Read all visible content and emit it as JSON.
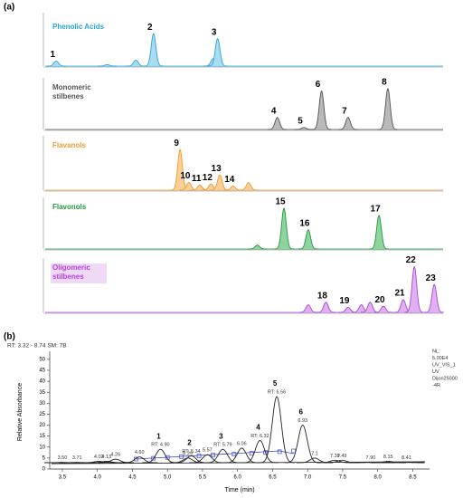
{
  "panel_a_label": "(a)",
  "panel_b_label": "(b)",
  "chart_data": [
    {
      "type": "chromatogram",
      "title": "Phenolic Acids",
      "color": "#29a3dc",
      "fill": "#a9dcf3",
      "xlim": [
        2,
        20
      ],
      "ylim": [
        0,
        100
      ],
      "peak_x": [
        2.5,
        4.8,
        6.1,
        6.9,
        9.6,
        9.8
      ],
      "peak_heights": [
        10,
        3,
        12,
        65,
        15,
        55
      ],
      "peak_labels": [
        "1",
        null,
        null,
        "2",
        null,
        "3"
      ]
    },
    {
      "type": "chromatogram",
      "title": "Monomeric stilbenes",
      "color": "#555555",
      "fill": "#b9b9b9",
      "xlim": [
        2,
        20
      ],
      "ylim": [
        0,
        100
      ],
      "peak_x": [
        12.5,
        13.7,
        14.5,
        15.7,
        17.5
      ],
      "peak_heights": [
        25,
        4,
        80,
        25,
        85
      ],
      "peak_labels": [
        "4",
        "5",
        "6",
        "7",
        "8"
      ]
    },
    {
      "type": "chromatogram",
      "title": "Flavanols",
      "color": "#f39a2b",
      "fill": "#f9cf98",
      "xlim": [
        2,
        20
      ],
      "ylim": [
        0,
        100
      ],
      "peak_x": [
        8.1,
        8.5,
        9.0,
        9.5,
        9.9,
        10.5,
        11.2
      ],
      "peak_heights": [
        80,
        15,
        10,
        12,
        30,
        8,
        15
      ],
      "peak_labels": [
        "9",
        "10",
        "11",
        "12",
        "13",
        "14",
        null
      ]
    },
    {
      "type": "chromatogram",
      "title": "Flavonols",
      "color": "#1f9a3c",
      "fill": "#8fd3a0",
      "xlim": [
        2,
        20
      ],
      "ylim": [
        0,
        100
      ],
      "peak_x": [
        11.6,
        12.8,
        13.9,
        17.1
      ],
      "peak_heights": [
        8,
        85,
        40,
        70
      ],
      "peak_labels": [
        null,
        "15",
        "16",
        "17"
      ]
    },
    {
      "type": "chromatogram",
      "title": "Oligomeric stilbenes",
      "color": "#b044d8",
      "fill": "#dfb1f0",
      "xlim": [
        2,
        20
      ],
      "ylim": [
        0,
        100
      ],
      "peak_x": [
        13.9,
        14.7,
        15.7,
        16.3,
        16.7,
        17.3,
        18.2,
        18.7,
        19.6
      ],
      "peak_heights": [
        15,
        20,
        10,
        15,
        20,
        12,
        25,
        90,
        55
      ],
      "peak_labels": [
        null,
        "18",
        "19",
        null,
        null,
        "20",
        "21",
        "22",
        "23"
      ]
    },
    {
      "type": "uv-chromatogram",
      "header": "RT: 3.32 - 8.74  SM: 7B",
      "info": [
        "NL:",
        "5.00E4",
        "UV_VIS_1",
        "UV",
        "Dijon25000",
        "-4R"
      ],
      "x_label": "Time (min)",
      "y_label": "Relative Absorbance",
      "color": "#222222",
      "xlim": [
        3.32,
        8.74
      ],
      "ylim": [
        0,
        52
      ],
      "xticks": [
        3.5,
        {
          "value": 4,
          "label": "4.0"
        },
        4.5,
        {
          "value": 5,
          "label": "5.0"
        },
        5.5,
        {
          "value": 6,
          "label": "6.0"
        },
        6.5,
        {
          "value": 7,
          "label": "7.0"
        },
        7.5,
        {
          "value": 8,
          "label": "8.0"
        },
        8.5
      ],
      "yticks": [
        0,
        5,
        10,
        15,
        20,
        25,
        30,
        35,
        40,
        45,
        50
      ],
      "peak_x": [
        3.5,
        3.71,
        4.02,
        4.13,
        4.26,
        4.6,
        4.9,
        5.29,
        5.34,
        5.57,
        5.79,
        6.06,
        6.32,
        6.56,
        6.93,
        7.1,
        7.39,
        7.49,
        7.9,
        8.15,
        8.41
      ],
      "x_labels": [
        "3.50",
        "3.71",
        "4.02",
        "4.13",
        "4.26",
        "4.60",
        "RT: 4.90",
        "5.29",
        "RT: 5.34",
        "5.57",
        "RT: 5.79",
        "6.06",
        "RT: 6.32",
        "RT: 6.56",
        "6.93",
        "7.1",
        "7.39",
        "7.49",
        "7.90",
        "8.15",
        "8.41"
      ],
      "peak_heights": [
        3,
        3,
        3.5,
        3.5,
        4.5,
        5.5,
        9,
        5,
        6,
        6.5,
        9,
        9.5,
        13,
        33,
        20,
        5,
        4,
        4,
        3,
        3.5,
        3
      ],
      "peak_labels": [
        null,
        null,
        null,
        null,
        null,
        null,
        "1",
        null,
        "2",
        null,
        "3",
        null,
        "4",
        "5",
        "6",
        null,
        null,
        null,
        null,
        null,
        null
      ]
    }
  ]
}
